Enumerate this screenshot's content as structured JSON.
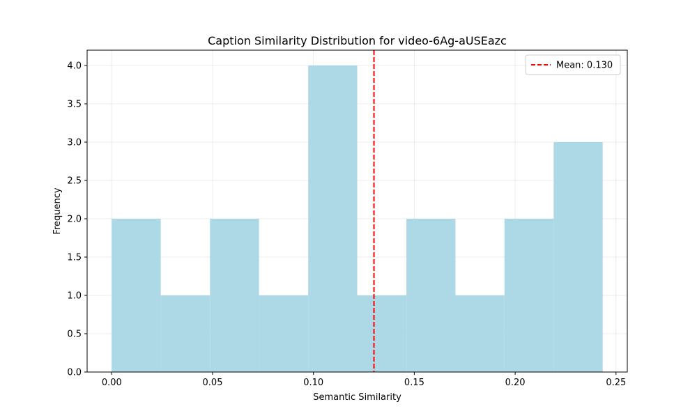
{
  "chart_data": {
    "type": "bar",
    "subtype": "histogram",
    "title": "Caption Similarity Distribution for video-6Ag-aUSEazc",
    "xlabel": "Semantic Similarity",
    "ylabel": "Frequency",
    "xlim": [
      -0.0122,
      0.2556
    ],
    "ylim": [
      0,
      4.2
    ],
    "xticks": [
      0.0,
      0.05,
      0.1,
      0.15,
      0.2,
      0.25
    ],
    "xtick_labels": [
      "0.00",
      "0.05",
      "0.10",
      "0.15",
      "0.20",
      "0.25"
    ],
    "yticks": [
      0.0,
      0.5,
      1.0,
      1.5,
      2.0,
      2.5,
      3.0,
      3.5,
      4.0
    ],
    "ytick_labels": [
      "0.0",
      "0.5",
      "1.0",
      "1.5",
      "2.0",
      "2.5",
      "3.0",
      "3.5",
      "4.0"
    ],
    "bin_edges": [
      0.0,
      0.0243,
      0.0487,
      0.073,
      0.0974,
      0.1217,
      0.1461,
      0.1704,
      0.1947,
      0.2191,
      0.2434
    ],
    "counts": [
      2,
      1,
      2,
      1,
      4,
      1,
      2,
      1,
      2,
      3
    ],
    "bar_color": "#add8e6",
    "grid": true,
    "mean_line": {
      "value": 0.13,
      "color": "#ff0000",
      "style": "dashed",
      "label": "Mean: 0.130"
    },
    "legend": {
      "position": "top-right",
      "entries": [
        "Mean: 0.130"
      ]
    }
  }
}
